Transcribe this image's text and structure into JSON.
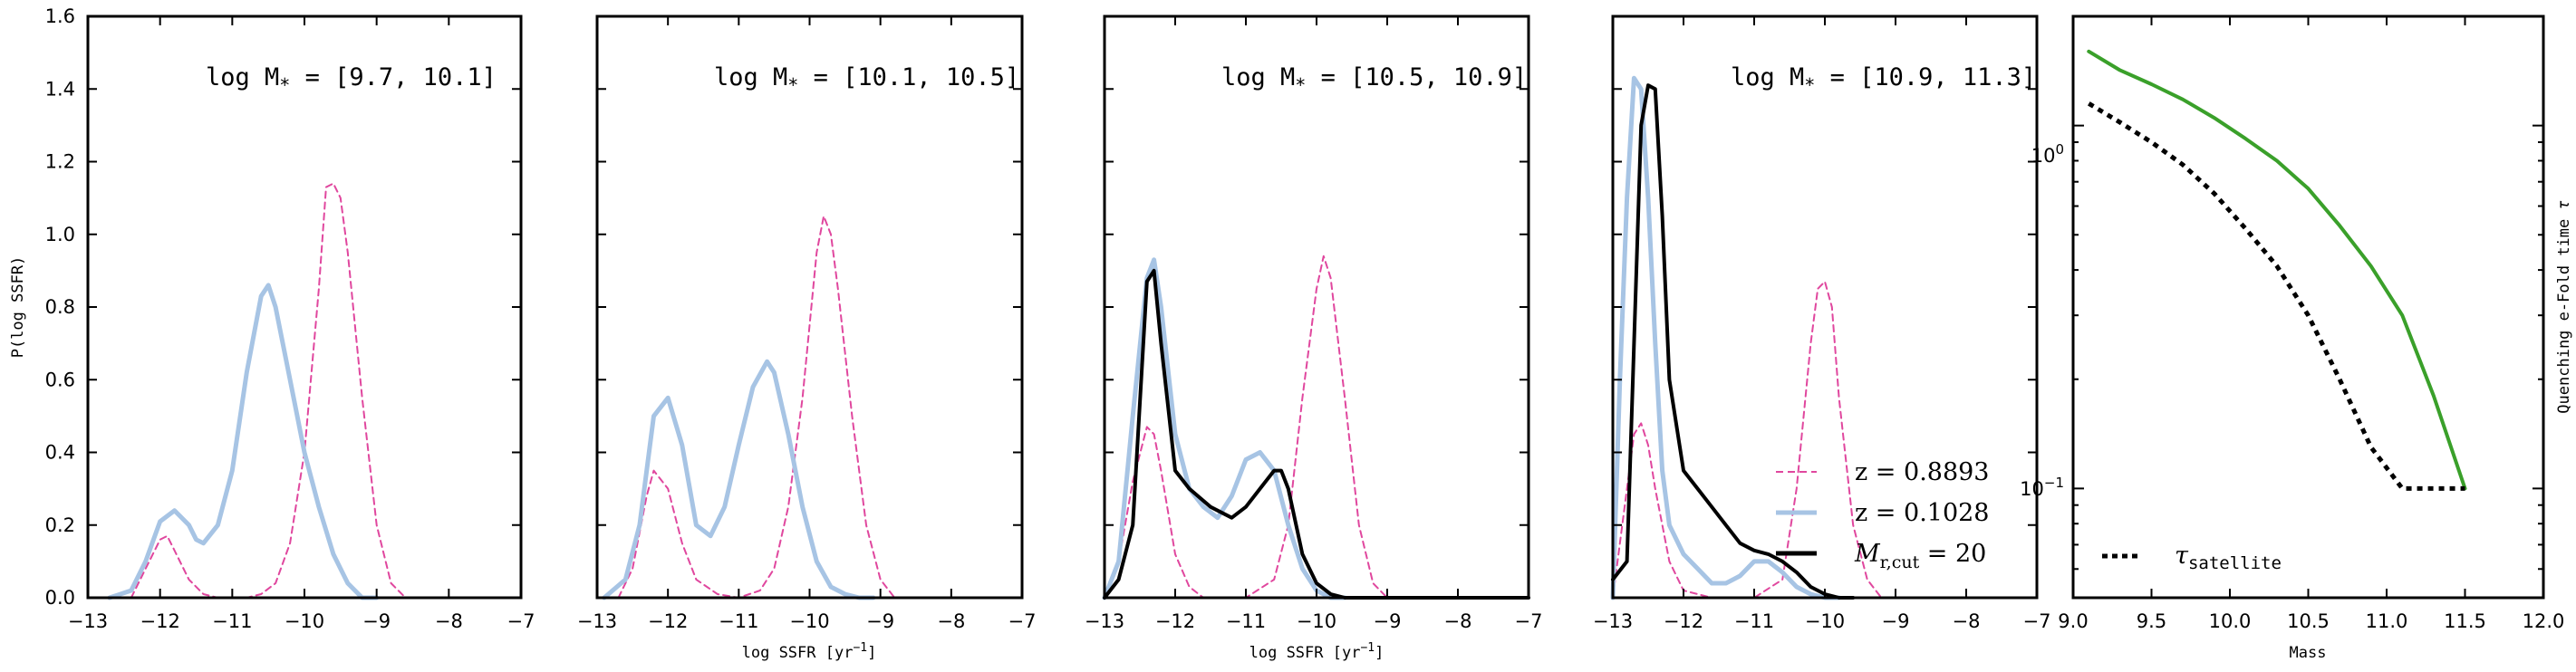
{
  "chart_data": [
    {
      "type": "line",
      "title": "log M_* = [9.7, 10.1]",
      "xlabel": "",
      "ylabel": "P(log SSFR)",
      "xlim": [
        -13,
        -7
      ],
      "ylim": [
        0,
        1.6
      ],
      "xticks": [
        "−13",
        "−12",
        "−11",
        "−10",
        "−9",
        "−8",
        "−7"
      ],
      "yticks": [
        "0.0",
        "0.2",
        "0.4",
        "0.6",
        "0.8",
        "1.0",
        "1.2",
        "1.4",
        "1.6"
      ],
      "series": [
        {
          "name": "z = 0.8893",
          "color": "#e0479e",
          "style": "dashed",
          "x": [
            -12.4,
            -12.2,
            -12.0,
            -11.9,
            -11.8,
            -11.6,
            -11.4,
            -11.2,
            -11.0,
            -10.8,
            -10.6,
            -10.4,
            -10.2,
            -10.0,
            -9.8,
            -9.7,
            -9.6,
            -9.5,
            -9.4,
            -9.2,
            -9.0,
            -8.8,
            -8.6
          ],
          "y": [
            0.0,
            0.08,
            0.16,
            0.17,
            0.13,
            0.05,
            0.01,
            0.0,
            0.0,
            0.0,
            0.01,
            0.04,
            0.15,
            0.4,
            0.85,
            1.13,
            1.14,
            1.1,
            0.95,
            0.55,
            0.2,
            0.04,
            0.0
          ]
        },
        {
          "name": "z = 0.1028",
          "color": "#a7c4e4",
          "style": "solid",
          "x": [
            -12.7,
            -12.4,
            -12.2,
            -12.0,
            -11.8,
            -11.6,
            -11.5,
            -11.4,
            -11.2,
            -11.0,
            -10.8,
            -10.6,
            -10.5,
            -10.4,
            -10.2,
            -10.0,
            -9.8,
            -9.6,
            -9.4,
            -9.2,
            -9.0
          ],
          "y": [
            0.0,
            0.02,
            0.1,
            0.21,
            0.24,
            0.2,
            0.16,
            0.15,
            0.2,
            0.35,
            0.62,
            0.83,
            0.86,
            0.8,
            0.6,
            0.4,
            0.25,
            0.12,
            0.04,
            0.0,
            0.0
          ]
        }
      ]
    },
    {
      "type": "line",
      "title": "log M_* = [10.1, 10.5]",
      "xlabel": "log SSFR [yr^-1]",
      "ylabel": "",
      "xlim": [
        -13,
        -7
      ],
      "ylim": [
        0,
        1.6
      ],
      "xticks": [
        "−13",
        "−12",
        "−11",
        "−10",
        "−9",
        "−8",
        "−7"
      ],
      "series": [
        {
          "name": "z = 0.8893",
          "color": "#e0479e",
          "style": "dashed",
          "x": [
            -12.7,
            -12.5,
            -12.3,
            -12.2,
            -12.0,
            -11.8,
            -11.6,
            -11.3,
            -11.0,
            -10.7,
            -10.5,
            -10.3,
            -10.1,
            -10.0,
            -9.9,
            -9.8,
            -9.7,
            -9.6,
            -9.4,
            -9.2,
            -9.0,
            -8.8
          ],
          "y": [
            0.0,
            0.08,
            0.28,
            0.35,
            0.3,
            0.15,
            0.05,
            0.01,
            0.0,
            0.02,
            0.08,
            0.25,
            0.55,
            0.75,
            0.95,
            1.05,
            1.0,
            0.85,
            0.5,
            0.2,
            0.05,
            0.0
          ]
        },
        {
          "name": "z = 0.1028",
          "color": "#a7c4e4",
          "style": "solid",
          "x": [
            -12.9,
            -12.6,
            -12.4,
            -12.2,
            -12.0,
            -11.8,
            -11.6,
            -11.4,
            -11.2,
            -11.0,
            -10.8,
            -10.6,
            -10.5,
            -10.3,
            -10.1,
            -9.9,
            -9.7,
            -9.5,
            -9.3,
            -9.1
          ],
          "y": [
            0.0,
            0.05,
            0.2,
            0.5,
            0.55,
            0.42,
            0.2,
            0.17,
            0.25,
            0.42,
            0.58,
            0.65,
            0.62,
            0.45,
            0.25,
            0.1,
            0.03,
            0.01,
            0.0,
            0.0
          ]
        }
      ]
    },
    {
      "type": "line",
      "title": "log M_* = [10.5, 10.9]",
      "xlabel": "log SSFR [yr^-1]",
      "ylabel": "",
      "xlim": [
        -13,
        -7
      ],
      "ylim": [
        0,
        1.6
      ],
      "xticks": [
        "−13",
        "−12",
        "−11",
        "−10",
        "−9",
        "−8",
        "−7"
      ],
      "series": [
        {
          "name": "z = 0.8893",
          "color": "#e0479e",
          "style": "dashed",
          "x": [
            -13.0,
            -12.8,
            -12.6,
            -12.4,
            -12.3,
            -12.2,
            -12.0,
            -11.8,
            -11.6,
            -11.0,
            -10.6,
            -10.4,
            -10.2,
            -10.0,
            -9.9,
            -9.8,
            -9.6,
            -9.4,
            -9.2,
            -9.0
          ],
          "y": [
            0.0,
            0.1,
            0.32,
            0.47,
            0.45,
            0.35,
            0.12,
            0.03,
            0.0,
            0.0,
            0.05,
            0.2,
            0.55,
            0.85,
            0.94,
            0.88,
            0.55,
            0.2,
            0.04,
            0.0
          ]
        },
        {
          "name": "z = 0.1028",
          "color": "#a7c4e4",
          "style": "solid",
          "x": [
            -13.0,
            -12.8,
            -12.6,
            -12.4,
            -12.3,
            -12.2,
            -12.0,
            -11.8,
            -11.6,
            -11.4,
            -11.2,
            -11.0,
            -10.8,
            -10.6,
            -10.4,
            -10.2,
            -10.0,
            -9.8,
            -9.6
          ],
          "y": [
            0.0,
            0.1,
            0.5,
            0.88,
            0.93,
            0.8,
            0.45,
            0.3,
            0.25,
            0.22,
            0.28,
            0.38,
            0.4,
            0.35,
            0.2,
            0.08,
            0.02,
            0.0,
            0.0
          ]
        },
        {
          "name": "M_r,cut = 20",
          "color": "#000000",
          "style": "solid",
          "x": [
            -13.0,
            -12.8,
            -12.6,
            -12.4,
            -12.3,
            -12.2,
            -12.0,
            -11.8,
            -11.5,
            -11.2,
            -11.0,
            -10.8,
            -10.6,
            -10.5,
            -10.4,
            -10.2,
            -10.0,
            -9.8,
            -9.6,
            -9.0,
            -7.0
          ],
          "y": [
            0.0,
            0.05,
            0.2,
            0.87,
            0.9,
            0.7,
            0.35,
            0.3,
            0.25,
            0.22,
            0.25,
            0.3,
            0.35,
            0.35,
            0.3,
            0.12,
            0.04,
            0.01,
            0.0,
            0.0,
            0.0
          ]
        }
      ]
    },
    {
      "type": "line",
      "title": "log M_* = [10.9, 11.3]",
      "xlabel": "",
      "ylabel": "",
      "xlim": [
        -13,
        -7
      ],
      "ylim": [
        0,
        1.6
      ],
      "xticks": [
        "−13",
        "−12",
        "−11",
        "−10",
        "−9",
        "−8",
        "−7"
      ],
      "legend": {
        "position": "lower-right",
        "entries": [
          "z = 0.8893",
          "z = 0.1028",
          "M_r,cut = 20"
        ]
      },
      "series": [
        {
          "name": "z = 0.8893",
          "color": "#e0479e",
          "style": "dashed",
          "x": [
            -13.0,
            -12.8,
            -12.7,
            -12.6,
            -12.5,
            -12.4,
            -12.2,
            -12.0,
            -11.6,
            -11.0,
            -10.6,
            -10.4,
            -10.2,
            -10.1,
            -10.0,
            -9.9,
            -9.8,
            -9.6,
            -9.4,
            -9.2
          ],
          "y": [
            0.0,
            0.3,
            0.45,
            0.48,
            0.42,
            0.3,
            0.1,
            0.02,
            0.0,
            0.0,
            0.05,
            0.3,
            0.7,
            0.85,
            0.87,
            0.8,
            0.55,
            0.2,
            0.05,
            0.0
          ]
        },
        {
          "name": "z = 0.1028",
          "color": "#a7c4e4",
          "style": "solid",
          "x": [
            -13.0,
            -12.9,
            -12.8,
            -12.7,
            -12.6,
            -12.5,
            -12.4,
            -12.3,
            -12.2,
            -12.0,
            -11.8,
            -11.6,
            -11.4,
            -11.2,
            -11.0,
            -10.8,
            -10.6,
            -10.4,
            -10.2,
            -10.0,
            -9.8
          ],
          "y": [
            0.0,
            0.6,
            1.1,
            1.43,
            1.4,
            1.1,
            0.7,
            0.35,
            0.2,
            0.12,
            0.08,
            0.04,
            0.04,
            0.06,
            0.1,
            0.1,
            0.07,
            0.03,
            0.01,
            0.0,
            0.0
          ]
        },
        {
          "name": "M_r,cut = 20",
          "color": "#000000",
          "style": "solid",
          "x": [
            -13.0,
            -12.8,
            -12.7,
            -12.6,
            -12.5,
            -12.4,
            -12.3,
            -12.2,
            -12.0,
            -11.8,
            -11.6,
            -11.4,
            -11.2,
            -11.0,
            -10.8,
            -10.6,
            -10.4,
            -10.2,
            -10.0,
            -9.8,
            -9.6
          ],
          "y": [
            0.05,
            0.1,
            0.7,
            1.3,
            1.41,
            1.4,
            1.05,
            0.6,
            0.35,
            0.3,
            0.25,
            0.2,
            0.15,
            0.13,
            0.12,
            0.1,
            0.07,
            0.03,
            0.01,
            0.0,
            0.0
          ]
        }
      ]
    },
    {
      "type": "line",
      "title": "",
      "xlabel": "Mass",
      "ylabel": "Quenching e-Fold time τ",
      "xlim": [
        9.0,
        12.0
      ],
      "ylim": [
        0.05,
        2.0
      ],
      "yscale": "log",
      "xticks": [
        "9.0",
        "9.5",
        "10.0",
        "10.5",
        "11.0",
        "11.5",
        "12.0"
      ],
      "yticks": [
        "10^-1",
        "10^0"
      ],
      "legend": {
        "position": "lower-left",
        "entries": [
          "τ_satellite"
        ]
      },
      "series": [
        {
          "name": "",
          "color": "#3aa02a",
          "style": "solid",
          "x": [
            9.1,
            9.3,
            9.5,
            9.7,
            9.9,
            10.1,
            10.3,
            10.5,
            10.7,
            10.9,
            11.1,
            11.3,
            11.5
          ],
          "y": [
            1.6,
            1.42,
            1.3,
            1.18,
            1.05,
            0.92,
            0.8,
            0.67,
            0.53,
            0.41,
            0.3,
            0.18,
            0.1
          ]
        },
        {
          "name": "τ_satellite",
          "color": "#000000",
          "style": "dotted",
          "x": [
            9.1,
            9.3,
            9.5,
            9.7,
            9.9,
            10.1,
            10.3,
            10.5,
            10.7,
            10.9,
            11.1,
            11.3,
            11.5
          ],
          "y": [
            1.15,
            1.02,
            0.9,
            0.78,
            0.65,
            0.52,
            0.41,
            0.3,
            0.2,
            0.13,
            0.1,
            0.1,
            0.1
          ]
        }
      ]
    }
  ],
  "text": {
    "p1_title_pre": "log M",
    "p1_title_sub": "*",
    "p1_title_post": " = [9.7, 10.1]",
    "p2_title_pre": "log M",
    "p2_title_sub": "*",
    "p2_title_post": " = [10.1, 10.5]",
    "p3_title_pre": "log M",
    "p3_title_sub": "*",
    "p3_title_post": " = [10.5, 10.9]",
    "p4_title_pre": "log M",
    "p4_title_sub": "*",
    "p4_title_post": " = [10.9, 11.3]",
    "ylabel_1": "P(log SSFR)",
    "xlabel_pre": "log SSFR [yr",
    "xlabel_sup": "−1",
    "xlabel_post": "]",
    "legend_z1": "z = 0.8893",
    "legend_z2": "z = 0.1028",
    "legend_m_pre": "M",
    "legend_m_sub": "r,cut",
    "legend_m_post": " = 20",
    "p5_xlabel": "Mass",
    "p5_ylabel_pre": "Quenching e-Fold time ",
    "p5_ylabel_tau": "τ",
    "p5_legend_pre": "τ",
    "p5_legend_sub": "satellite",
    "p5_ytick_0_base": "10",
    "p5_ytick_0_exp": "−1",
    "p5_ytick_1_base": "10",
    "p5_ytick_1_exp": "0"
  }
}
